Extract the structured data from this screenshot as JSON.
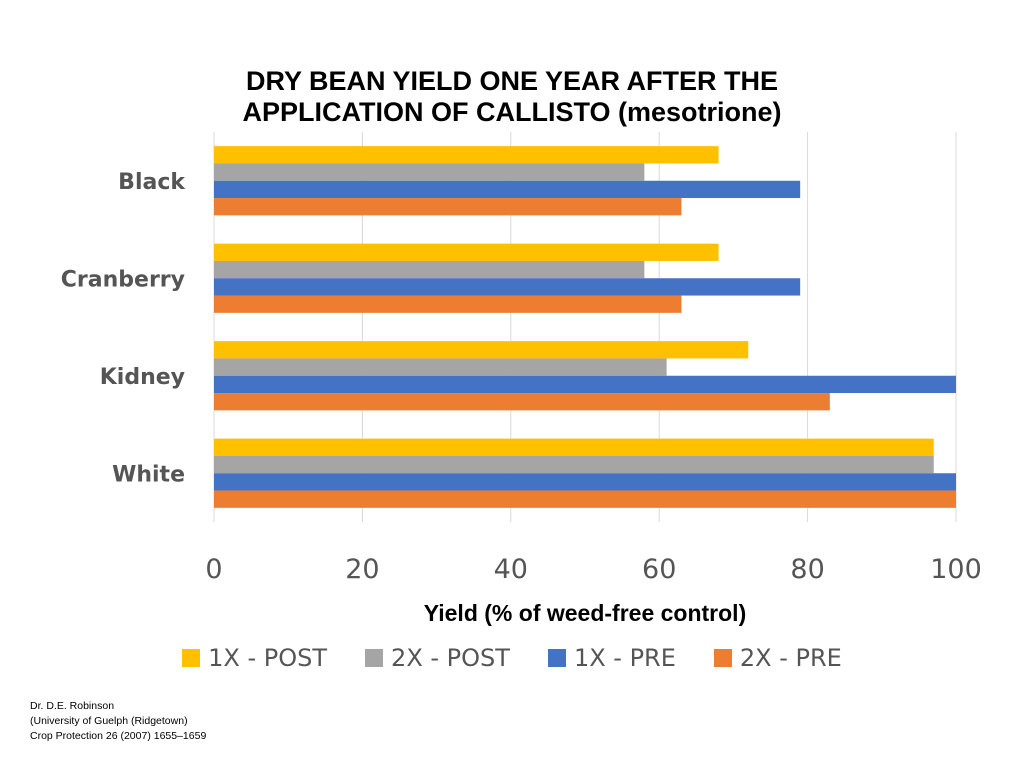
{
  "chart_data": {
    "type": "bar",
    "orientation": "horizontal",
    "title_lines": [
      "DRY BEAN YIELD ONE YEAR AFTER THE",
      "APPLICATION OF CALLISTO (mesotrione)"
    ],
    "xlabel": "Yield (% of weed-free control)",
    "ylabel": "",
    "xlim": [
      0,
      100
    ],
    "xticks": [
      0,
      20,
      40,
      60,
      80,
      100
    ],
    "grid": "vertical",
    "legend_position": "bottom",
    "categories": [
      "Black",
      "Cranberry",
      "Kidney",
      "White"
    ],
    "series": [
      {
        "name": "1X - POST",
        "color": "#FFC000",
        "values": [
          68,
          68,
          72,
          97
        ]
      },
      {
        "name": "2X - POST",
        "color": "#A5A5A5",
        "values": [
          58,
          58,
          61,
          97
        ]
      },
      {
        "name": "1X - PRE",
        "color": "#4472C4",
        "values": [
          79,
          79,
          100,
          100
        ]
      },
      {
        "name": "2X - PRE",
        "color": "#ED7D31",
        "values": [
          63,
          63,
          83,
          100
        ]
      }
    ]
  },
  "credit": {
    "lines": [
      "Dr. D.E. Robinson",
      "(University of Guelph (Ridgetown)",
      "Crop Protection 26 (2007) 1655–1659"
    ]
  }
}
